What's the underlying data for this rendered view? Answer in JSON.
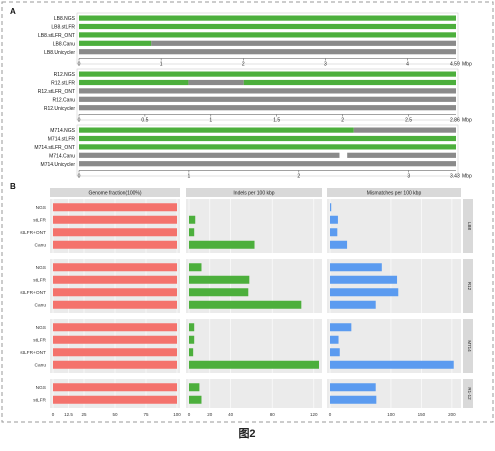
{
  "figure_caption": "图2",
  "colors": {
    "green": "#4caf3c",
    "grey": "#8a8a8a",
    "red": "#f4726c",
    "blue": "#5b9bf0",
    "facet_bg": "#ebebeb",
    "strip_bg": "#d9d9d9",
    "purple": "#9a6fb5"
  },
  "panel_a": {
    "label": "A",
    "genomes": [
      {
        "tracks": [
          "LB8.NGS",
          "LB8.stLFR",
          "LB8.stLFR_ONT",
          "LB8.Canu",
          "LB8.Unicycler"
        ],
        "axis_max": 4.59,
        "unit": "Mbp",
        "ticks": [
          "0",
          "1",
          "2",
          "3",
          "4"
        ],
        "tick_values": [
          0,
          1,
          2,
          3,
          4
        ],
        "end_label": "4.59",
        "track_fill": [
          {
            "segments": [
              [
                0,
                4.59,
                "green"
              ]
            ]
          },
          {
            "segments": [
              [
                0,
                4.59,
                "green"
              ]
            ]
          },
          {
            "segments": [
              [
                0,
                4.59,
                "green"
              ]
            ]
          },
          {
            "segments": [
              [
                0,
                0.88,
                "green"
              ],
              [
                0.88,
                4.59,
                "grey"
              ]
            ]
          },
          {
            "segments": [
              [
                0,
                4.59,
                "grey"
              ]
            ]
          }
        ]
      },
      {
        "tracks": [
          "R12.NGS",
          "R12.stLFR",
          "R12.stLFR_ONT",
          "R12.Canu",
          "R12.Unicycler"
        ],
        "axis_max": 2.86,
        "unit": "Mbp",
        "ticks": [
          "0",
          "0.5",
          "1",
          "1.5",
          "2",
          "2.5"
        ],
        "tick_values": [
          0,
          0.5,
          1,
          1.5,
          2,
          2.5
        ],
        "end_label": "2.86",
        "track_fill": [
          {
            "segments": [
              [
                0,
                2.86,
                "green"
              ]
            ]
          },
          {
            "segments": [
              [
                0,
                0.83,
                "green"
              ],
              [
                0.83,
                1.25,
                "grey"
              ],
              [
                1.25,
                2.86,
                "green"
              ]
            ]
          },
          {
            "segments": [
              [
                0,
                2.86,
                "grey"
              ]
            ]
          },
          {
            "segments": [
              [
                0,
                2.86,
                "grey"
              ]
            ]
          },
          {
            "segments": [
              [
                0,
                2.86,
                "grey"
              ]
            ]
          }
        ]
      },
      {
        "tracks": [
          "M714.NGS",
          "M714.stLFR",
          "M714.stLFR_ONT",
          "M714.Canu",
          "M714.Unicycler"
        ],
        "axis_max": 3.43,
        "unit": "Mbp",
        "ticks": [
          "0",
          "1",
          "2",
          "3"
        ],
        "tick_values": [
          0,
          1,
          2,
          3
        ],
        "end_label": "3.43",
        "track_fill": [
          {
            "segments": [
              [
                0,
                2.5,
                "green"
              ],
              [
                2.5,
                3.43,
                "grey"
              ]
            ]
          },
          {
            "segments": [
              [
                0,
                3.43,
                "green"
              ]
            ]
          },
          {
            "segments": [
              [
                0,
                3.43,
                "green"
              ]
            ]
          },
          {
            "segments": [
              [
                0,
                2.37,
                "grey"
              ],
              [
                2.37,
                2.44,
                "white"
              ],
              [
                2.44,
                3.43,
                "grey"
              ]
            ]
          },
          {
            "segments": [
              [
                0,
                3.43,
                "grey"
              ]
            ]
          }
        ]
      }
    ]
  },
  "panel_b": {
    "label": "B",
    "facet_titles": [
      "Genome fraction(100%)",
      "Indels per 100 kbp",
      "Mismatches per 100 kbp"
    ],
    "facet_ticks": [
      {
        "labels": [
          "0",
          "12.5",
          "25",
          "50",
          "75",
          "100"
        ],
        "values": [
          0,
          12.5,
          25,
          50,
          75,
          100
        ],
        "max": 100
      },
      {
        "labels": [
          "0",
          "20",
          "40",
          "80",
          "120"
        ],
        "values": [
          0,
          20,
          40,
          80,
          120
        ],
        "max": 125
      },
      {
        "labels": [
          "0",
          "100",
          "150",
          "200"
        ],
        "values": [
          0,
          100,
          150,
          200
        ],
        "max": 210
      }
    ],
    "groups": [
      {
        "strip": "LB8",
        "rows": [
          {
            "label": "NGS",
            "gf": 100,
            "indels": 0,
            "mismatch": 2
          },
          {
            "label": "stLFR",
            "gf": 100,
            "indels": 6,
            "mismatch": 13
          },
          {
            "label": "stLFR+ONT",
            "gf": 100,
            "indels": 5,
            "mismatch": 12
          },
          {
            "label": "Canu",
            "gf": 100,
            "indels": 63,
            "mismatch": 28
          }
        ]
      },
      {
        "strip": "R12",
        "rows": [
          {
            "label": "NGS",
            "gf": 100,
            "indels": 12,
            "mismatch": 85
          },
          {
            "label": "stLFR",
            "gf": 100,
            "indels": 58,
            "mismatch": 110
          },
          {
            "label": "stLFR+ONT",
            "gf": 100,
            "indels": 57,
            "mismatch": 112
          },
          {
            "label": "Canu",
            "gf": 100,
            "indels": 108,
            "mismatch": 75
          }
        ]
      },
      {
        "strip": "M714",
        "rows": [
          {
            "label": "NGS",
            "gf": 100,
            "indels": 5,
            "mismatch": 35
          },
          {
            "label": "stLFR",
            "gf": 100,
            "indels": 5,
            "mismatch": 14
          },
          {
            "label": "stLFR+ONT",
            "gf": 100,
            "indels": 4,
            "mismatch": 16
          },
          {
            "label": "Canu",
            "gf": 100,
            "indels": 125,
            "mismatch": 203
          }
        ]
      },
      {
        "strip": "R1-12",
        "rows": [
          {
            "label": "NGS",
            "gf": 100,
            "indels": 10,
            "mismatch": 75
          },
          {
            "label": "stLFR",
            "gf": 100,
            "indels": 12,
            "mismatch": 76
          }
        ]
      }
    ]
  },
  "chart_data": [
    {
      "type": "bar",
      "series": [
        {
          "name": "Genome fraction(100%)",
          "categories": [
            "LB8 NGS",
            "LB8 stLFR",
            "LB8 stLFR+ONT",
            "LB8 Canu",
            "R12 NGS",
            "R12 stLFR",
            "R12 stLFR+ONT",
            "R12 Canu",
            "M714 NGS",
            "M714 stLFR",
            "M714 stLFR+ONT",
            "M714 Canu",
            "R1-12 NGS",
            "R1-12 stLFR"
          ],
          "values": [
            100,
            100,
            100,
            100,
            100,
            100,
            100,
            100,
            100,
            100,
            100,
            100,
            100,
            100
          ]
        },
        {
          "name": "Indels per 100 kbp",
          "values": [
            0,
            6,
            5,
            63,
            12,
            58,
            57,
            108,
            5,
            5,
            4,
            125,
            10,
            12
          ]
        },
        {
          "name": "Mismatches per 100 kbp",
          "values": [
            2,
            13,
            12,
            28,
            85,
            110,
            112,
            75,
            35,
            14,
            16,
            203,
            75,
            76
          ]
        }
      ],
      "title": "",
      "xlabel": "",
      "ylabel": "",
      "grid": true
    }
  ]
}
